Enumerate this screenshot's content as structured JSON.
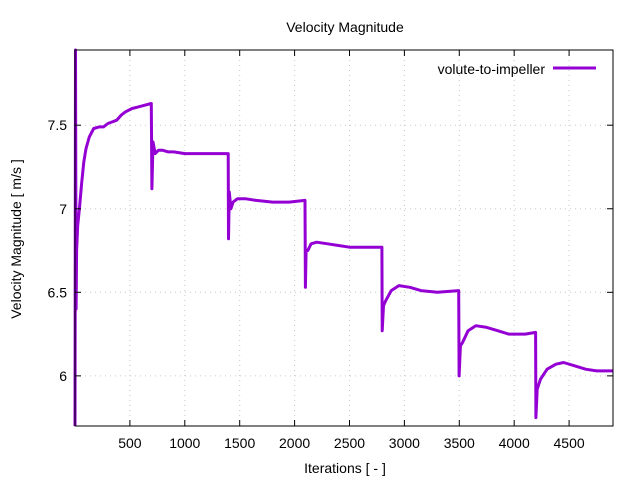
{
  "chart_data": {
    "type": "line",
    "title": "Velocity Magnitude",
    "xlabel": "Iterations [ - ]",
    "ylabel": "Velocity Magnitude [ m/s ]",
    "xlim": [
      0,
      4900
    ],
    "ylim": [
      5.7,
      7.95
    ],
    "xticks": [
      500,
      1000,
      1500,
      2000,
      2500,
      3000,
      3500,
      4000,
      4500
    ],
    "yticks": [
      6,
      6.5,
      7,
      7.5
    ],
    "grid": true,
    "legend_position": "top-right",
    "series": [
      {
        "name": "volute-to-impeller",
        "color": "#9400d3",
        "points": [
          [
            0,
            5.7
          ],
          [
            5,
            7.95
          ],
          [
            10,
            6.4
          ],
          [
            15,
            6.75
          ],
          [
            25,
            6.9
          ],
          [
            40,
            7.0
          ],
          [
            60,
            7.15
          ],
          [
            80,
            7.28
          ],
          [
            100,
            7.36
          ],
          [
            130,
            7.43
          ],
          [
            170,
            7.48
          ],
          [
            220,
            7.49
          ],
          [
            260,
            7.49
          ],
          [
            300,
            7.51
          ],
          [
            340,
            7.52
          ],
          [
            380,
            7.53
          ],
          [
            420,
            7.56
          ],
          [
            460,
            7.58
          ],
          [
            520,
            7.6
          ],
          [
            580,
            7.61
          ],
          [
            640,
            7.62
          ],
          [
            695,
            7.63
          ],
          [
            700,
            7.12
          ],
          [
            710,
            7.4
          ],
          [
            730,
            7.33
          ],
          [
            760,
            7.35
          ],
          [
            800,
            7.35
          ],
          [
            850,
            7.34
          ],
          [
            900,
            7.34
          ],
          [
            1000,
            7.33
          ],
          [
            1100,
            7.33
          ],
          [
            1200,
            7.33
          ],
          [
            1300,
            7.33
          ],
          [
            1395,
            7.33
          ],
          [
            1398,
            6.82
          ],
          [
            1405,
            7.1
          ],
          [
            1420,
            7.0
          ],
          [
            1440,
            7.04
          ],
          [
            1480,
            7.06
          ],
          [
            1550,
            7.06
          ],
          [
            1650,
            7.05
          ],
          [
            1800,
            7.04
          ],
          [
            1950,
            7.04
          ],
          [
            2095,
            7.05
          ],
          [
            2098,
            6.53
          ],
          [
            2105,
            6.75
          ],
          [
            2120,
            6.75
          ],
          [
            2150,
            6.79
          ],
          [
            2200,
            6.8
          ],
          [
            2300,
            6.79
          ],
          [
            2400,
            6.78
          ],
          [
            2500,
            6.77
          ],
          [
            2600,
            6.77
          ],
          [
            2795,
            6.77
          ],
          [
            2798,
            6.27
          ],
          [
            2810,
            6.42
          ],
          [
            2830,
            6.45
          ],
          [
            2880,
            6.51
          ],
          [
            2950,
            6.54
          ],
          [
            3050,
            6.53
          ],
          [
            3150,
            6.51
          ],
          [
            3300,
            6.5
          ],
          [
            3495,
            6.51
          ],
          [
            3498,
            6.0
          ],
          [
            3510,
            6.18
          ],
          [
            3530,
            6.2
          ],
          [
            3580,
            6.27
          ],
          [
            3650,
            6.3
          ],
          [
            3750,
            6.29
          ],
          [
            3850,
            6.27
          ],
          [
            3950,
            6.25
          ],
          [
            4100,
            6.25
          ],
          [
            4195,
            6.26
          ],
          [
            4198,
            5.75
          ],
          [
            4210,
            5.92
          ],
          [
            4240,
            5.98
          ],
          [
            4300,
            6.04
          ],
          [
            4380,
            6.07
          ],
          [
            4450,
            6.08
          ],
          [
            4550,
            6.06
          ],
          [
            4650,
            6.04
          ],
          [
            4750,
            6.03
          ],
          [
            4850,
            6.03
          ],
          [
            4900,
            6.03
          ]
        ]
      }
    ]
  }
}
